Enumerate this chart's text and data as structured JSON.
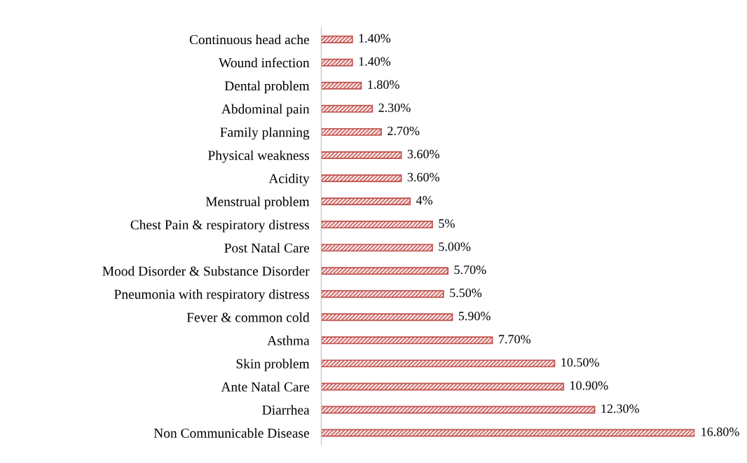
{
  "chart_data": {
    "type": "bar",
    "orientation": "horizontal",
    "categories": [
      "Continuous head ache",
      "Wound infection",
      "Dental problem",
      "Abdominal pain",
      "Family planning",
      "Physical weakness",
      "Acidity",
      "Menstrual problem",
      "Chest Pain & respiratory distress",
      "Post Natal Care",
      "Mood Disorder & Substance Disorder",
      "Pneumonia with respiratory distress",
      "Fever & common cold",
      "Asthma",
      "Skin problem",
      "Ante Natal Care",
      "Diarrhea",
      "Non Communicable Disease"
    ],
    "values": [
      1.4,
      1.4,
      1.8,
      2.3,
      2.7,
      3.6,
      3.6,
      4,
      5,
      5.0,
      5.7,
      5.5,
      5.9,
      7.7,
      10.5,
      10.9,
      12.3,
      16.8
    ],
    "value_labels": [
      "1.40%",
      "1.40%",
      "1.80%",
      "2.30%",
      "2.70%",
      "3.60%",
      "3.60%",
      "4%",
      "5%",
      "5.00%",
      "5.70%",
      "5.50%",
      "5.90%",
      "7.70%",
      "10.50%",
      "10.90%",
      "12.30%",
      "16.80%"
    ],
    "color": "#c0504d",
    "grid": false,
    "legend": false
  }
}
